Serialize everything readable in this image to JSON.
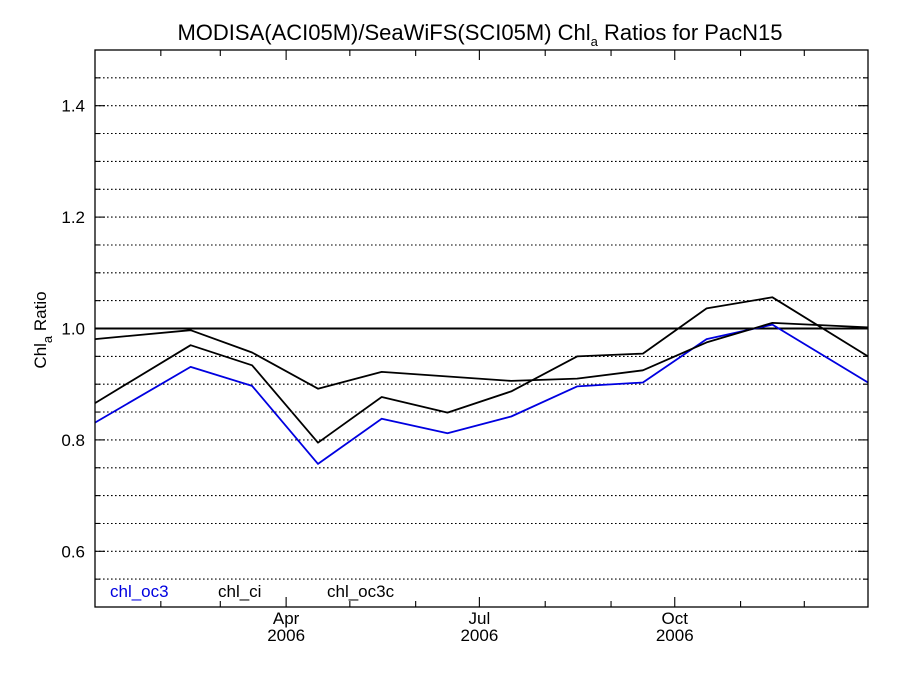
{
  "chart_data": {
    "type": "line",
    "title": {
      "main": "MODISA(ACI05M)/SeaWiFS(SCI05M)  Chl",
      "subscript": "a",
      "rest": " Ratios for PacN15"
    },
    "ylabel": {
      "main": "Chl",
      "subscript": "a",
      "rest": " Ratio"
    },
    "ylim": [
      0.5,
      1.5
    ],
    "y_ticks": [
      "0.6",
      "0.8",
      "1.0",
      "1.2",
      "1.4"
    ],
    "y_tick_values": [
      0.6,
      0.8,
      1.0,
      1.2,
      1.4
    ],
    "xlim": [
      "2006-01-01",
      "2006-12-31"
    ],
    "x_ticks": [
      {
        "month": "Apr",
        "year": "2006",
        "date": "2006-04-01"
      },
      {
        "month": "Jul",
        "year": "2006",
        "date": "2006-07-01"
      },
      {
        "month": "Oct",
        "year": "2006",
        "date": "2006-10-01"
      }
    ],
    "grid": true,
    "grid_style": "dotted",
    "reference_line": 1.0,
    "legend_position": "bottom-left",
    "x": [
      "2006-01-01",
      "2006-02-15",
      "2006-03-16",
      "2006-04-16",
      "2006-05-16",
      "2006-06-16",
      "2006-07-16",
      "2006-08-16",
      "2006-09-16",
      "2006-10-16",
      "2006-11-16",
      "2006-12-31"
    ],
    "series": [
      {
        "name": "chl_oc3",
        "color": "#0000e0",
        "values": [
          0.831,
          0.931,
          0.897,
          0.757,
          0.838,
          0.812,
          0.842,
          0.896,
          0.903,
          0.981,
          1.007,
          0.903
        ]
      },
      {
        "name": "chl_ci",
        "color": "#000000",
        "values": [
          0.981,
          0.997,
          0.957,
          0.892,
          0.922,
          null,
          0.906,
          0.91,
          0.925,
          0.975,
          1.01,
          1.002
        ]
      },
      {
        "name": "chl_oc3c",
        "color": "#000000",
        "values": [
          0.866,
          0.97,
          0.934,
          0.795,
          0.877,
          0.849,
          0.887,
          0.95,
          0.955,
          1.036,
          1.056,
          0.95
        ]
      }
    ]
  }
}
